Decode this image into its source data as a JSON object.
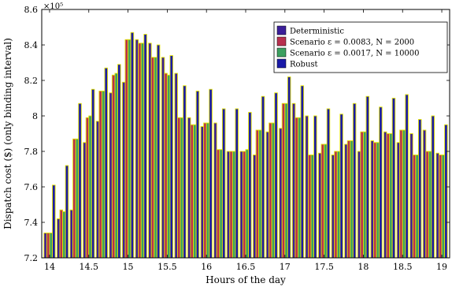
{
  "chart_data": {
    "type": "bar",
    "title": "",
    "xlabel": "Hours of the day",
    "ylabel": "Dispatch cost ($) (only binding interval)",
    "y_multiplier_label": "×10⁵",
    "xlim": [
      13.9,
      19.1
    ],
    "ylim": [
      7.2,
      8.6
    ],
    "x_ticks": [
      14,
      14.5,
      15,
      15.5,
      16,
      16.5,
      17,
      17.5,
      18,
      18.5,
      19
    ],
    "y_ticks": [
      7.2,
      7.4,
      7.6,
      7.8,
      8.0,
      8.2,
      8.4,
      8.6
    ],
    "x_tick_labels": [
      "14",
      "14.5",
      "15",
      "15.5",
      "16",
      "16.5",
      "17",
      "17.5",
      "18",
      "18.5",
      "19"
    ],
    "y_tick_labels": [
      "7.2",
      "7.4",
      "7.6",
      "7.8",
      "8",
      "8.2",
      "8.4",
      "8.6"
    ],
    "legend_position": "top-right",
    "x": [
      14.0,
      14.167,
      14.333,
      14.5,
      14.667,
      14.833,
      15.0,
      15.167,
      15.333,
      15.5,
      15.667,
      15.833,
      16.0,
      16.167,
      16.333,
      16.5,
      16.667,
      16.833,
      17.0,
      17.167,
      17.333,
      17.5,
      17.667,
      17.833,
      18.0,
      18.167,
      18.333,
      18.5,
      18.667,
      18.833,
      19.0
    ],
    "series": [
      {
        "name": "Deterministic",
        "color": "#3b1f9a",
        "values": [
          7.34,
          7.42,
          7.47,
          7.85,
          7.97,
          8.13,
          8.19,
          8.43,
          8.41,
          8.33,
          8.24,
          7.99,
          7.94,
          7.96,
          7.8,
          7.8,
          7.78,
          7.91,
          7.93,
          8.07,
          8.0,
          7.79,
          7.78,
          7.84,
          7.8,
          7.86,
          7.91,
          7.85,
          7.9,
          7.92,
          7.79
        ]
      },
      {
        "name": "Scenario ε = 0.0083, N = 2000",
        "color": "#b8304f",
        "values": [
          7.34,
          7.47,
          7.87,
          7.99,
          8.14,
          8.23,
          8.43,
          8.41,
          8.33,
          8.24,
          7.99,
          7.95,
          7.96,
          7.81,
          7.8,
          7.8,
          7.92,
          7.96,
          8.07,
          7.99,
          7.78,
          7.84,
          7.8,
          7.86,
          7.91,
          7.85,
          7.9,
          7.92,
          7.78,
          7.8,
          7.78
        ]
      },
      {
        "name": "Scenario ε = 0.0017, N = 10000",
        "color": "#3ca060",
        "values": [
          7.34,
          7.46,
          7.87,
          8.0,
          8.14,
          8.24,
          8.43,
          8.41,
          8.33,
          8.23,
          7.99,
          7.95,
          7.96,
          7.81,
          7.8,
          7.81,
          7.92,
          7.96,
          8.07,
          7.99,
          7.78,
          7.84,
          7.8,
          7.86,
          7.91,
          7.85,
          7.9,
          7.92,
          7.78,
          7.8,
          7.78
        ]
      },
      {
        "name": "Robust",
        "color": "#1a1aa8",
        "values": [
          7.61,
          7.72,
          8.07,
          8.15,
          8.27,
          8.29,
          8.47,
          8.46,
          8.4,
          8.34,
          8.17,
          8.14,
          8.15,
          8.04,
          8.04,
          8.02,
          8.11,
          8.13,
          8.22,
          8.17,
          8.0,
          8.04,
          8.01,
          8.07,
          8.11,
          8.05,
          8.1,
          8.12,
          7.98,
          8.0,
          7.95
        ]
      }
    ],
    "legend": [
      {
        "label": "Deterministic",
        "color": "#3b1f9a"
      },
      {
        "label": "Scenario ε = 0.0083, N = 2000",
        "color": "#b8304f"
      },
      {
        "label": "Scenario ε = 0.0017, N = 10000",
        "color": "#3ca060"
      },
      {
        "label": "Robust",
        "color": "#1a1aa8"
      }
    ],
    "outline_color": "#e3e300"
  }
}
